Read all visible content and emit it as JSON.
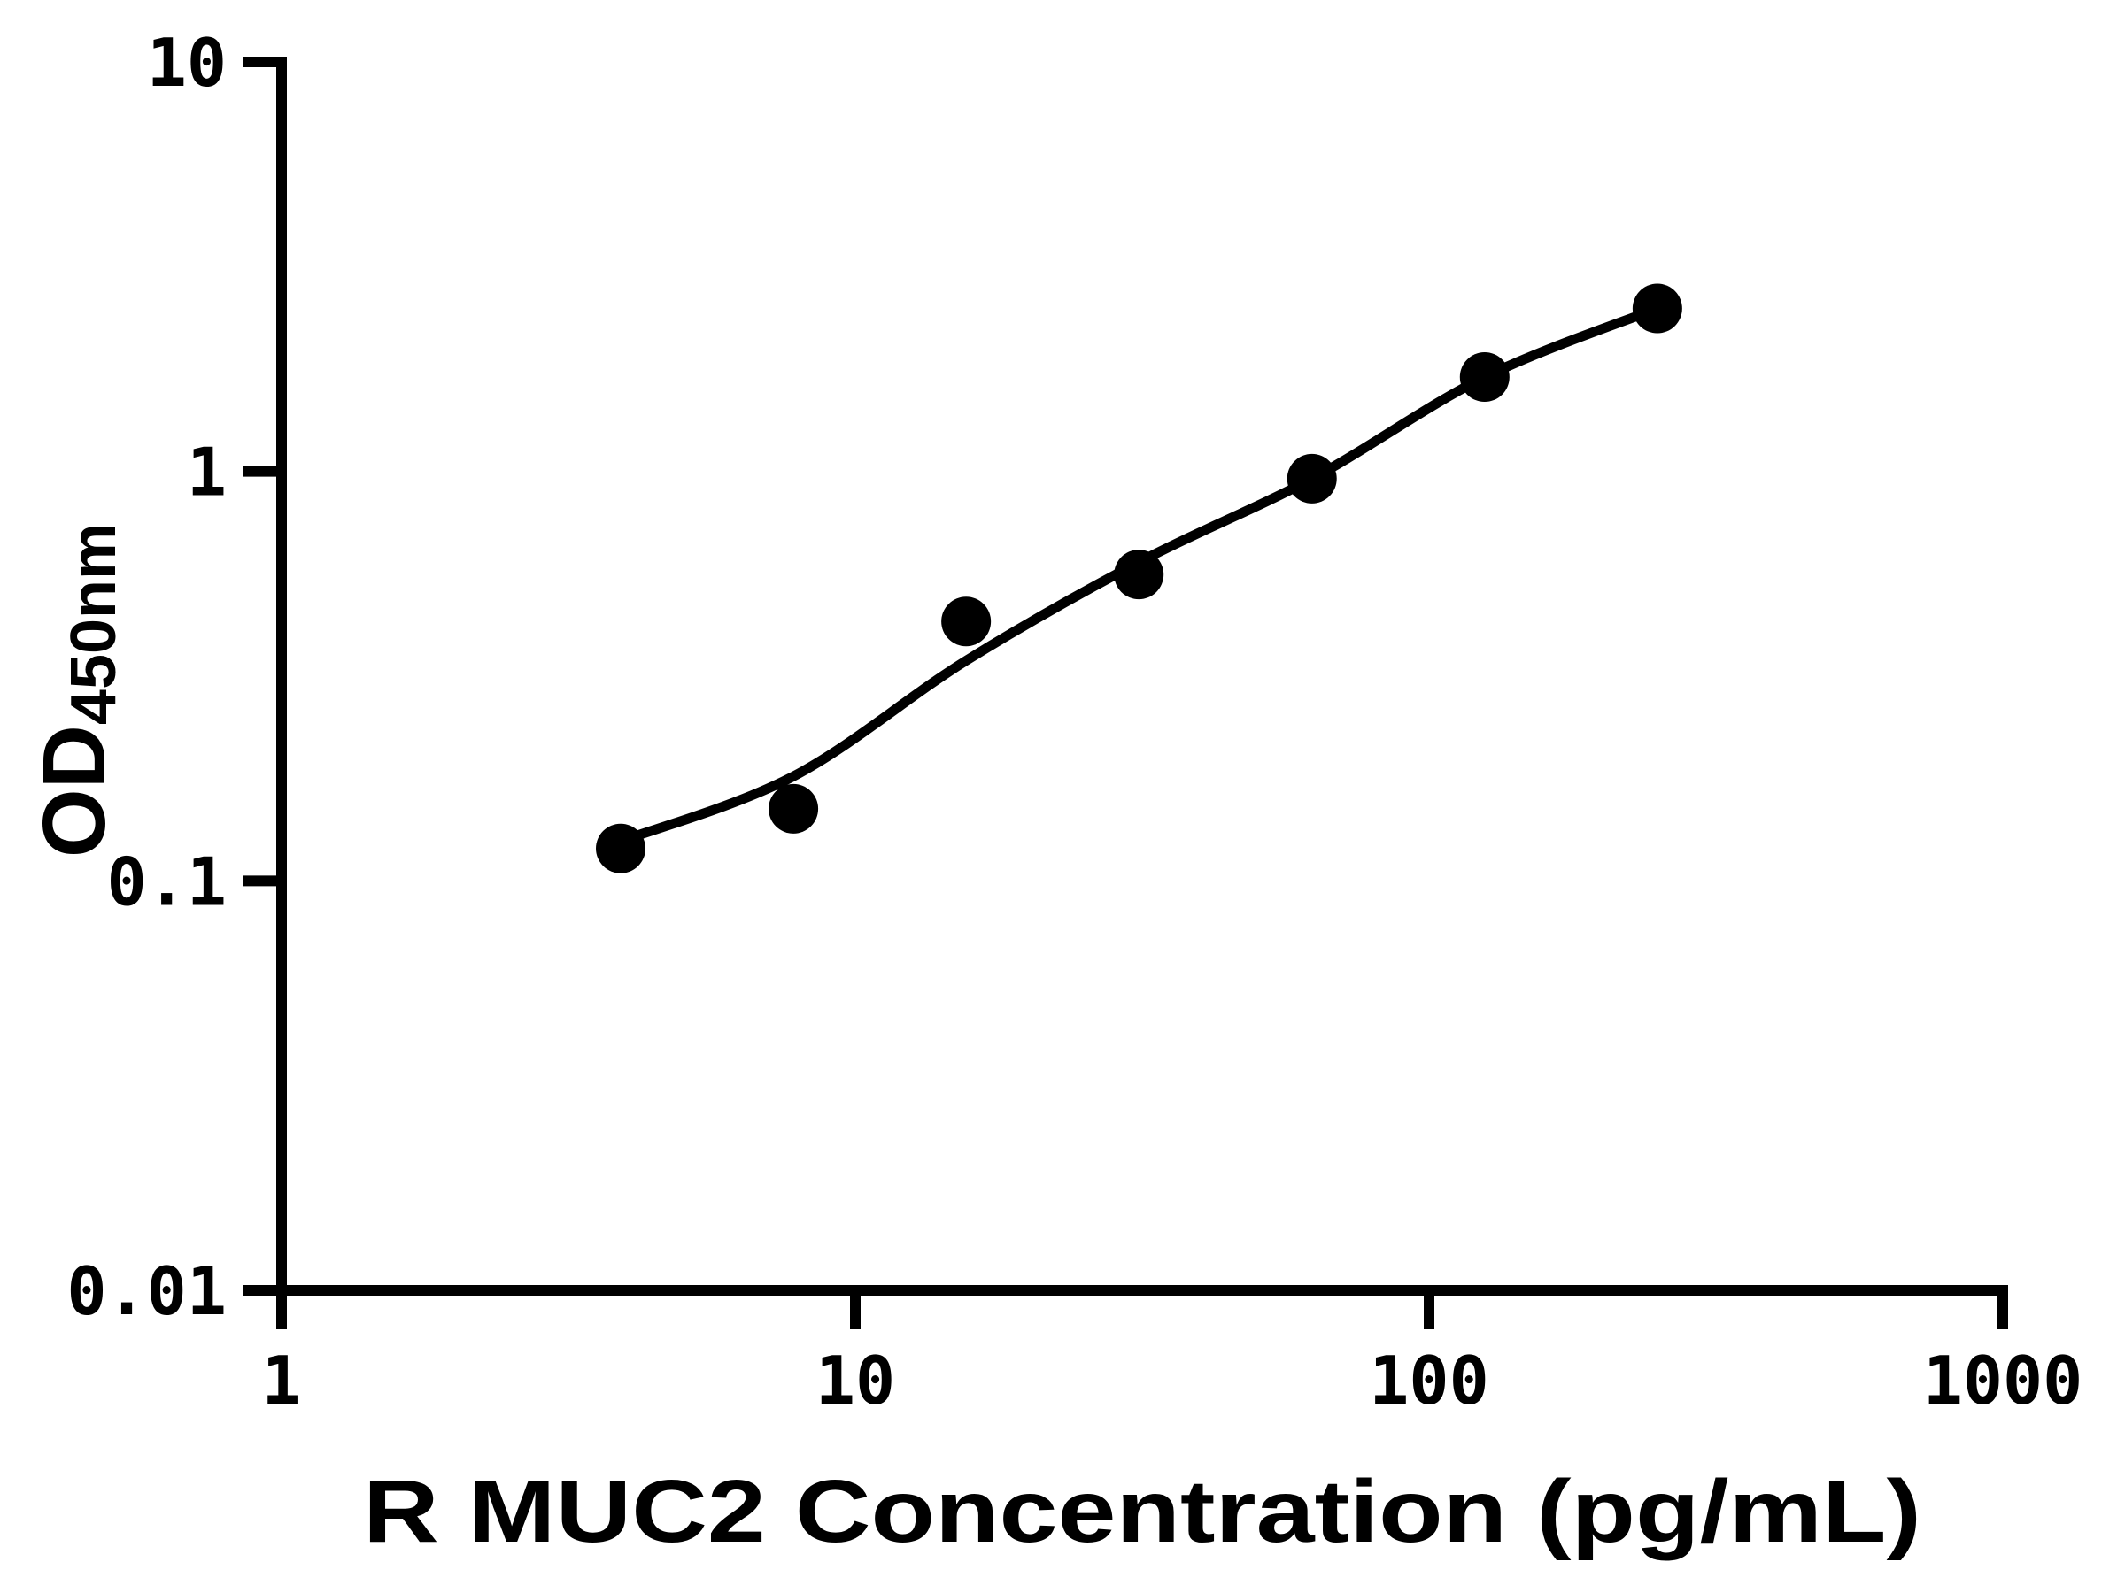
{
  "figure": {
    "background": "#ffffff"
  },
  "chart_data": {
    "type": "scatter",
    "title": "",
    "xlabel": "R MUC2 Concentration (pg/mL)",
    "ylabel": "OD450nm",
    "ylabel_main": "OD",
    "ylabel_sub": "450nm",
    "x_scale": "log",
    "y_scale": "log",
    "xlim": [
      1,
      1000
    ],
    "ylim": [
      0.01,
      10
    ],
    "grid": false,
    "legend": "none",
    "x_ticks": [
      {
        "value": 1,
        "label": "1"
      },
      {
        "value": 10,
        "label": "10"
      },
      {
        "value": 100,
        "label": "100"
      },
      {
        "value": 1000,
        "label": "1000"
      }
    ],
    "y_ticks": [
      {
        "value": 0.01,
        "label": "0.01"
      },
      {
        "value": 0.1,
        "label": "0.1"
      },
      {
        "value": 1,
        "label": "1"
      },
      {
        "value": 10,
        "label": "10"
      }
    ],
    "series": [
      {
        "name": "standard-points",
        "marker": "circle",
        "color": "#000000",
        "points": [
          {
            "x": 3.9,
            "y": 0.12
          },
          {
            "x": 7.8,
            "y": 0.15
          },
          {
            "x": 15.6,
            "y": 0.43
          },
          {
            "x": 31.2,
            "y": 0.56
          },
          {
            "x": 62.5,
            "y": 0.96
          },
          {
            "x": 125,
            "y": 1.7
          },
          {
            "x": 250,
            "y": 2.5
          }
        ]
      }
    ],
    "fit_curve": {
      "name": "fitted-standard-curve",
      "color": "#000000",
      "samples": [
        {
          "x": 3.9,
          "y": 0.125
        },
        {
          "x": 7.8,
          "y": 0.18
        },
        {
          "x": 15.6,
          "y": 0.345
        },
        {
          "x": 31.2,
          "y": 0.6
        },
        {
          "x": 62.5,
          "y": 0.96
        },
        {
          "x": 125,
          "y": 1.7
        },
        {
          "x": 250,
          "y": 2.5
        }
      ]
    },
    "colors": {
      "points": "#000000",
      "curve": "#000000",
      "axis": "#000000",
      "text": "#000000",
      "background": "#ffffff"
    }
  }
}
